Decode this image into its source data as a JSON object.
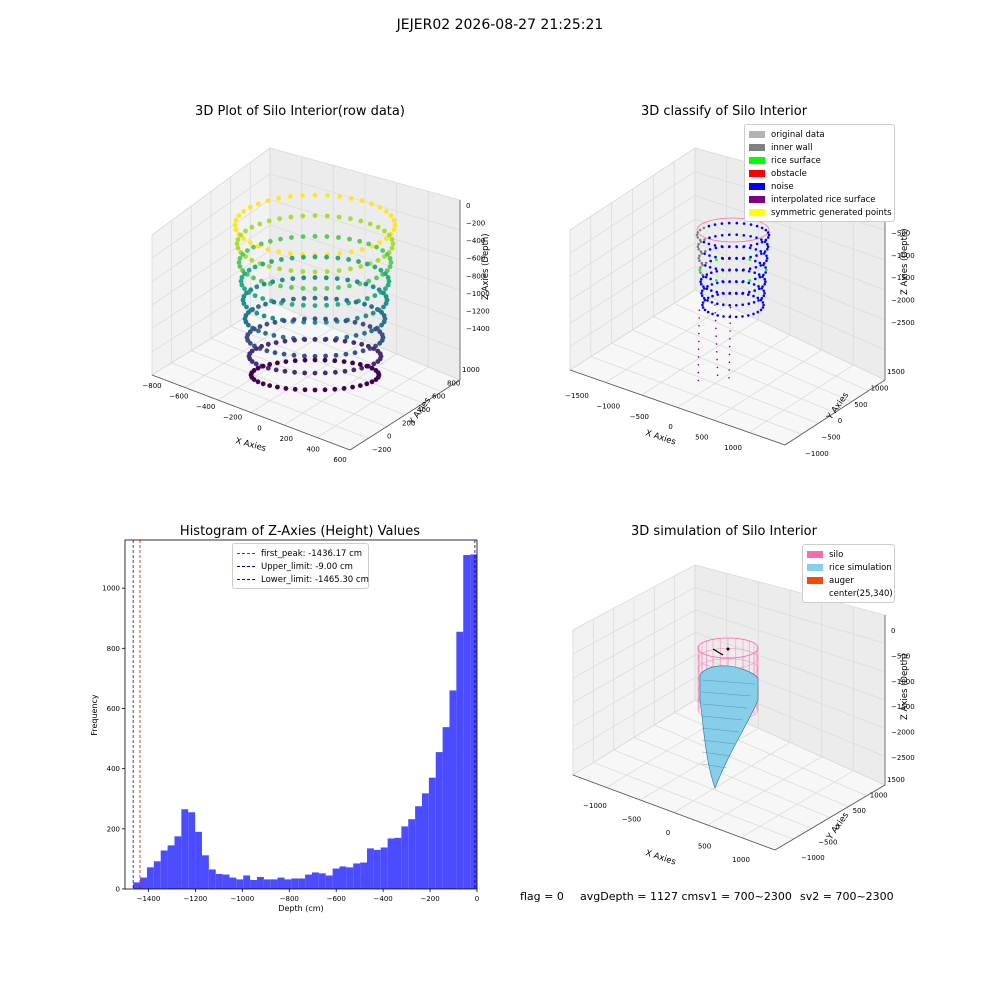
{
  "suptitle": "JEJER02 2026-08-27 21:25:21",
  "footer": {
    "flag": "flag = 0",
    "avg": "avgDepth = 1127 cmsv1 = 700~2300",
    "sv2": "sv2 = 700~2300"
  },
  "chart_data": [
    {
      "type": "scatter",
      "title": "3D Plot of Silo Interior(row data)",
      "xlabel": "X Axies",
      "ylabel": "Y Axies",
      "zlabel": "Z Axies (Depth)",
      "xticks": [
        "−800",
        "−600",
        "−400",
        "−200",
        "0",
        "200",
        "400",
        "600"
      ],
      "yticks": [
        "−200",
        "0",
        "200",
        "400",
        "600",
        "800",
        "1000"
      ],
      "zticks": [
        "0",
        "−200",
        "−400",
        "−600",
        "−800",
        "−1000",
        "−1200",
        "−1400"
      ],
      "colormap": "viridis",
      "description_series": "point cloud of silo walls, colored by depth"
    },
    {
      "type": "scatter",
      "title": "3D classify of Silo Interior",
      "xlabel": "X Axies",
      "ylabel": "Y Axies",
      "zlabel": "Z Axies (Depth)",
      "xticks": [
        "−1500",
        "−1000",
        "−500",
        "0",
        "500",
        "1000"
      ],
      "yticks": [
        "−1000",
        "−500",
        "0",
        "500",
        "1000",
        "1500"
      ],
      "zticks": [
        "0",
        "−500",
        "−1000",
        "−1500",
        "−2000",
        "−2500"
      ],
      "legend": [
        {
          "label": "original data",
          "color": "#b3b3b3"
        },
        {
          "label": "inner wall",
          "color": "#808080"
        },
        {
          "label": "rice surface",
          "color": "#00ff00"
        },
        {
          "label": "obstacle",
          "color": "#ff0000"
        },
        {
          "label": "noise",
          "color": "#0000ff"
        },
        {
          "label": "interpolated rice surface",
          "color": "#800080"
        },
        {
          "label": "symmetric generated points",
          "color": "#ffff00"
        }
      ]
    },
    {
      "type": "bar",
      "title": "Histogram of Z-Axies (Height) Values",
      "xlabel": "Depth (cm)",
      "ylabel": "Frequency",
      "xlim": [
        -1500,
        0
      ],
      "ylim": [
        0,
        1160
      ],
      "xticks": [
        -1400,
        -1200,
        -1000,
        -800,
        -600,
        -400,
        -200,
        0
      ],
      "xtick_labels": [
        "−1400",
        "−1200",
        "−1000",
        "−800",
        "−600",
        "−400",
        "−200",
        "0"
      ],
      "yticks": [
        0,
        200,
        400,
        600,
        800,
        1000
      ],
      "bar_color": "#4b4bff",
      "bins_start": -1465,
      "bin_width": 29.3,
      "values": [
        22,
        38,
        72,
        92,
        128,
        145,
        175,
        265,
        255,
        190,
        112,
        65,
        50,
        48,
        38,
        32,
        45,
        30,
        40,
        32,
        32,
        38,
        32,
        35,
        35,
        48,
        55,
        52,
        45,
        68,
        75,
        72,
        85,
        88,
        135,
        130,
        138,
        168,
        170,
        208,
        232,
        275,
        318,
        370,
        455,
        538,
        660,
        855,
        1110,
        1112
      ],
      "lines": [
        {
          "label": "first_peak: -1436.17 cm",
          "x": -1436.17,
          "color": "#ff0000"
        },
        {
          "label": "Upper_limit: -9.00 cm",
          "x": -9.0,
          "color": "#00008b"
        },
        {
          "label": "Lower_limit: -1465.30 cm",
          "x": -1465.3,
          "color": "#0000ff"
        }
      ]
    },
    {
      "type": "area",
      "title": "3D simulation of Silo Interior",
      "xlabel": "X Axies",
      "ylabel": "Y Axies",
      "zlabel": "Z Axies (Depth)",
      "xticks": [
        "−1000",
        "−500",
        "0",
        "500",
        "1000"
      ],
      "yticks": [
        "−1000",
        "−500",
        "0",
        "500",
        "1000",
        "1500"
      ],
      "zticks": [
        "0",
        "−500",
        "−1000",
        "−1500",
        "−2000",
        "−2500"
      ],
      "legend": [
        {
          "label": "silo",
          "color": "#ff69b4"
        },
        {
          "label": "rice simulation",
          "color": "#87ceeb"
        },
        {
          "label": "auger",
          "color": "#ff4500"
        },
        {
          "label": "center(25,340)",
          "color": "#ffffff"
        }
      ]
    }
  ]
}
